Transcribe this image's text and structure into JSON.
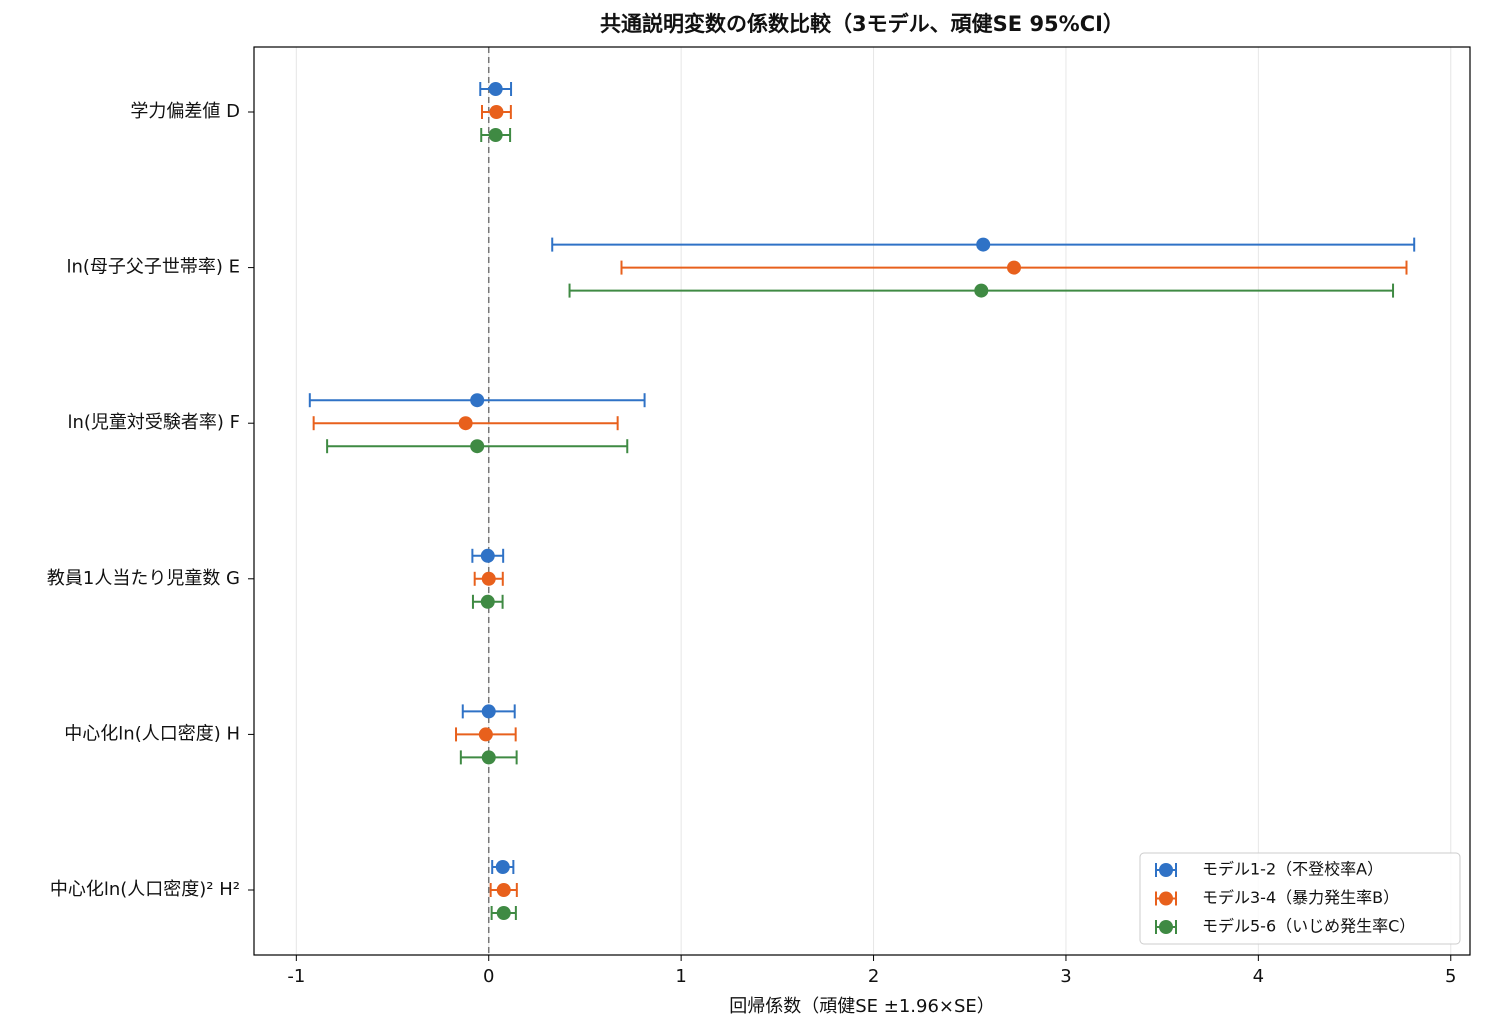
{
  "chart_data": {
    "type": "errorbar",
    "title": "共通説明変数の係数比較（3モデル、頑健SE 95%CI）",
    "xlabel": "回帰係数（頑健SE ±1.96×SE）",
    "categories": [
      "学力偏差値 D",
      "ln(母子父子世帯率) E",
      "ln(児童対受験者率) F",
      "教員1人当たり児童数 G",
      "中心化ln(人口密度) H",
      "中心化ln(人口密度)² H²"
    ],
    "series": [
      {
        "name": "モデル1-2（不登校率A）",
        "color": "#2f72c6",
        "values": [
          0.036,
          2.57,
          -0.06,
          -0.005,
          0,
          0.073
        ],
        "errors": [
          0.08,
          2.24,
          0.87,
          0.08,
          0.135,
          0.055
        ]
      },
      {
        "name": "モデル3-4（暴力発生率B）",
        "color": "#e8601c",
        "values": [
          0.04,
          2.73,
          -0.12,
          0,
          -0.015,
          0.078
        ],
        "errors": [
          0.075,
          2.04,
          0.79,
          0.073,
          0.155,
          0.068
        ]
      },
      {
        "name": "モデル5-6（いじめ発生率C）",
        "color": "#3f8a43",
        "values": [
          0.036,
          2.56,
          -0.06,
          -0.005,
          0,
          0.078
        ],
        "errors": [
          0.075,
          2.14,
          0.78,
          0.077,
          0.145,
          0.063
        ]
      }
    ],
    "xlim": [
      -1.22,
      5.1
    ],
    "xticks": [
      -1,
      0,
      1,
      2,
      3,
      4,
      5
    ],
    "reference_line": 0,
    "grid": true,
    "legend": "lower right"
  }
}
